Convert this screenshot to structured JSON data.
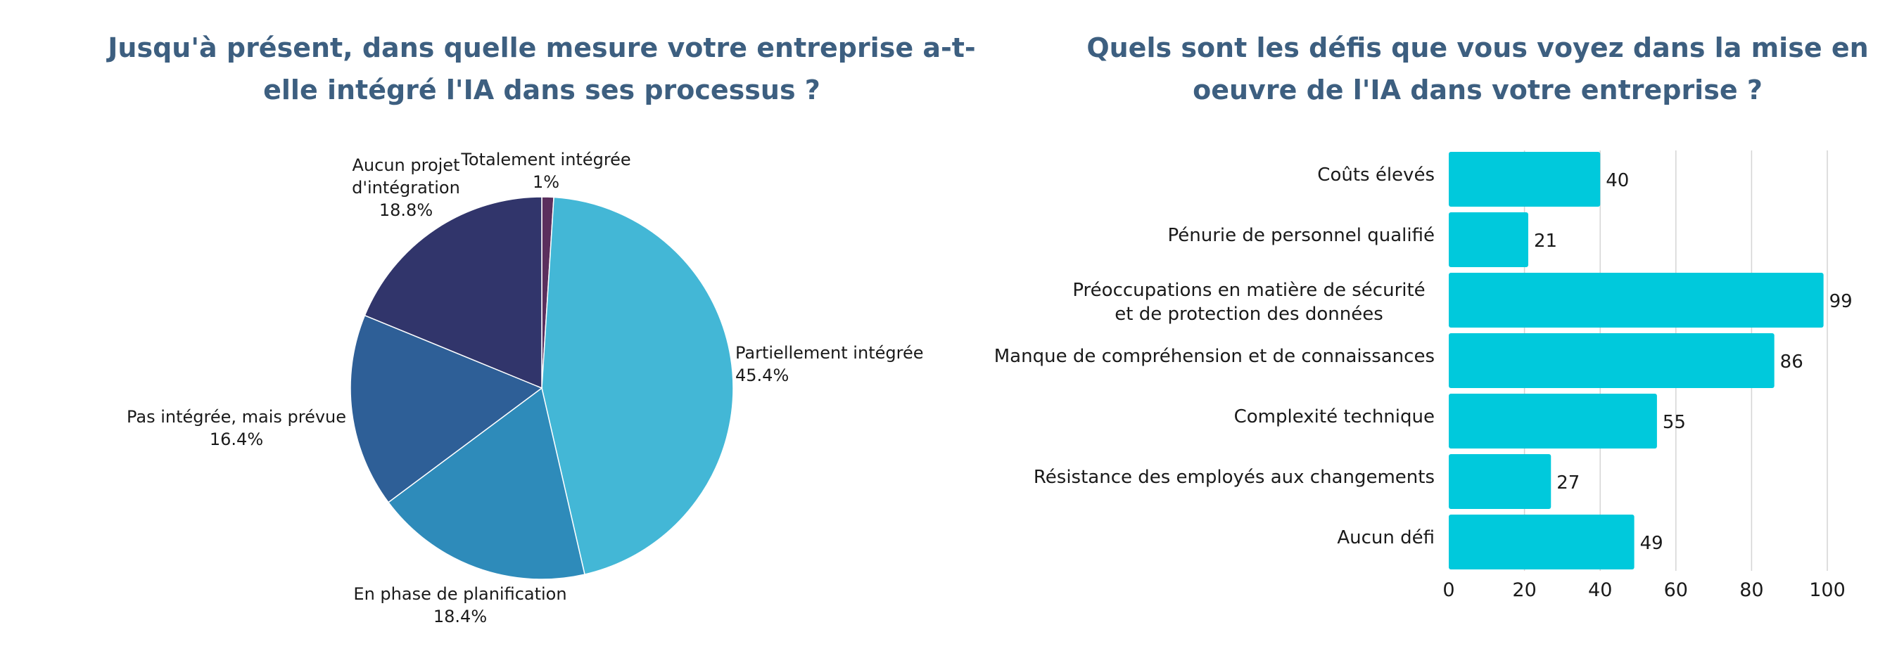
{
  "chart_data": [
    {
      "type": "pie",
      "title": "Jusqu'à présent, dans quelle mesure votre entreprise a-t-elle intégré l'IA dans ses processus ?",
      "slices": [
        {
          "label": "Totalement intégrée",
          "value": 1.0,
          "value_label": "1%",
          "color": "#5b2f5d"
        },
        {
          "label": "Partiellement intégrée",
          "value": 45.4,
          "value_label": "45.4%",
          "color": "#43b7d6"
        },
        {
          "label": "En phase de planification",
          "value": 18.4,
          "value_label": "18.4%",
          "color": "#2e8bba"
        },
        {
          "label": "Pas intégrée, mais prévue",
          "value": 16.4,
          "value_label": "16.4%",
          "color": "#2e5f97"
        },
        {
          "label": "Aucun projet d'intégration",
          "value": 18.8,
          "value_label": "18.8%",
          "color": "#31356b"
        }
      ]
    },
    {
      "type": "bar",
      "orientation": "horizontal",
      "title": "Quels sont les défis que vous voyez dans la mise en oeuvre de l'IA dans votre entreprise ?",
      "categories": [
        "Coûts élevés",
        "Pénurie de personnel qualifié",
        "Préoccupations en matière de sécurité et de protection des données",
        "Manque de compréhension et de connaissances",
        "Complexité technique",
        "Résistance des employés aux changements",
        "Aucun défi"
      ],
      "values": [
        40,
        21,
        99,
        86,
        55,
        27,
        49
      ],
      "xlim": [
        0,
        100
      ],
      "xticks": [
        0,
        20,
        40,
        60,
        80,
        100
      ],
      "grid": true,
      "bar_color": "#00c9dc"
    }
  ]
}
